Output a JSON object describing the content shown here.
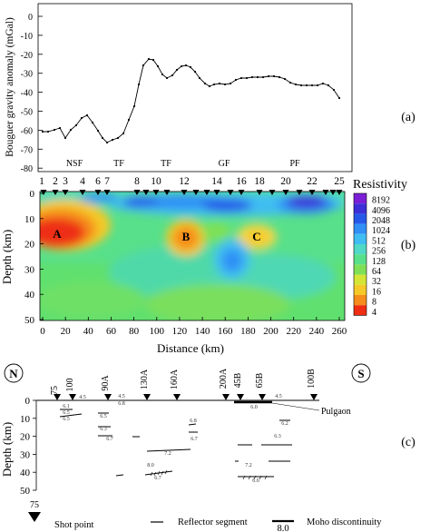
{
  "panel_labels": {
    "a": "(a)",
    "b": "(b)",
    "c": "(c)"
  },
  "panel_a": {
    "ylabel": "Bouguer gravity anomaly (mGal)",
    "yticks": [
      "0",
      "-10",
      "-20",
      "-30",
      "-40",
      "-50",
      "-60",
      "-70",
      "-80"
    ],
    "zones": [
      "NSF",
      "TF",
      "TF",
      "GF",
      "PF"
    ]
  },
  "panel_b": {
    "ylabel": "Depth (km)",
    "xlabel": "Distance (km)",
    "xticks": [
      "0",
      "20",
      "40",
      "60",
      "80",
      "100",
      "120",
      "140",
      "160",
      "180",
      "200",
      "220",
      "240",
      "260"
    ],
    "yticks": [
      "0",
      "10",
      "20",
      "30",
      "40",
      "50"
    ],
    "stations": [
      "1",
      "2",
      "3",
      "4",
      "6",
      "7",
      "8",
      "10",
      "12",
      "14",
      "16",
      "18",
      "20",
      "22",
      "25"
    ],
    "anomalies": [
      "A",
      "B",
      "C"
    ],
    "legend_title": "Resistivity",
    "legend_values": [
      "8192",
      "4096",
      "2048",
      "1024",
      "512",
      "256",
      "128",
      "64",
      "32",
      "16",
      "8",
      "4"
    ],
    "legend_colors": [
      "#7b1fd6",
      "#3c2fd8",
      "#2558e8",
      "#2f8ff5",
      "#3fbdf2",
      "#50d9c6",
      "#58e08a",
      "#7fe057",
      "#d4e535",
      "#f5c928",
      "#f58c1c",
      "#ee2d12"
    ]
  },
  "panel_c": {
    "north": "N",
    "south": "S",
    "ylabel": "Depth (km)",
    "yticks": [
      "0",
      "10",
      "20",
      "30",
      "40",
      "50"
    ],
    "shot_labels": [
      "75",
      "100",
      "90A",
      "130A",
      "160A",
      "200A",
      "45B",
      "65B",
      "100B"
    ],
    "place": "Pulgaon",
    "velocities": [
      "4.5",
      "6.1",
      "6.5",
      "6.5",
      "4.5",
      "6.8",
      "6.5",
      "6.3",
      "6.7",
      "7.2",
      "6.8",
      "6.7",
      "4.5",
      "6.0",
      "6.2",
      "6.3",
      "7.2",
      "6.6",
      "6.7",
      "8.0"
    ],
    "legend": {
      "shot_point_number": "75",
      "shot_point": "Shot point",
      "reflector": "Reflector segment",
      "moho_value": "8.0",
      "moho": "Moho discontinuity"
    }
  }
}
